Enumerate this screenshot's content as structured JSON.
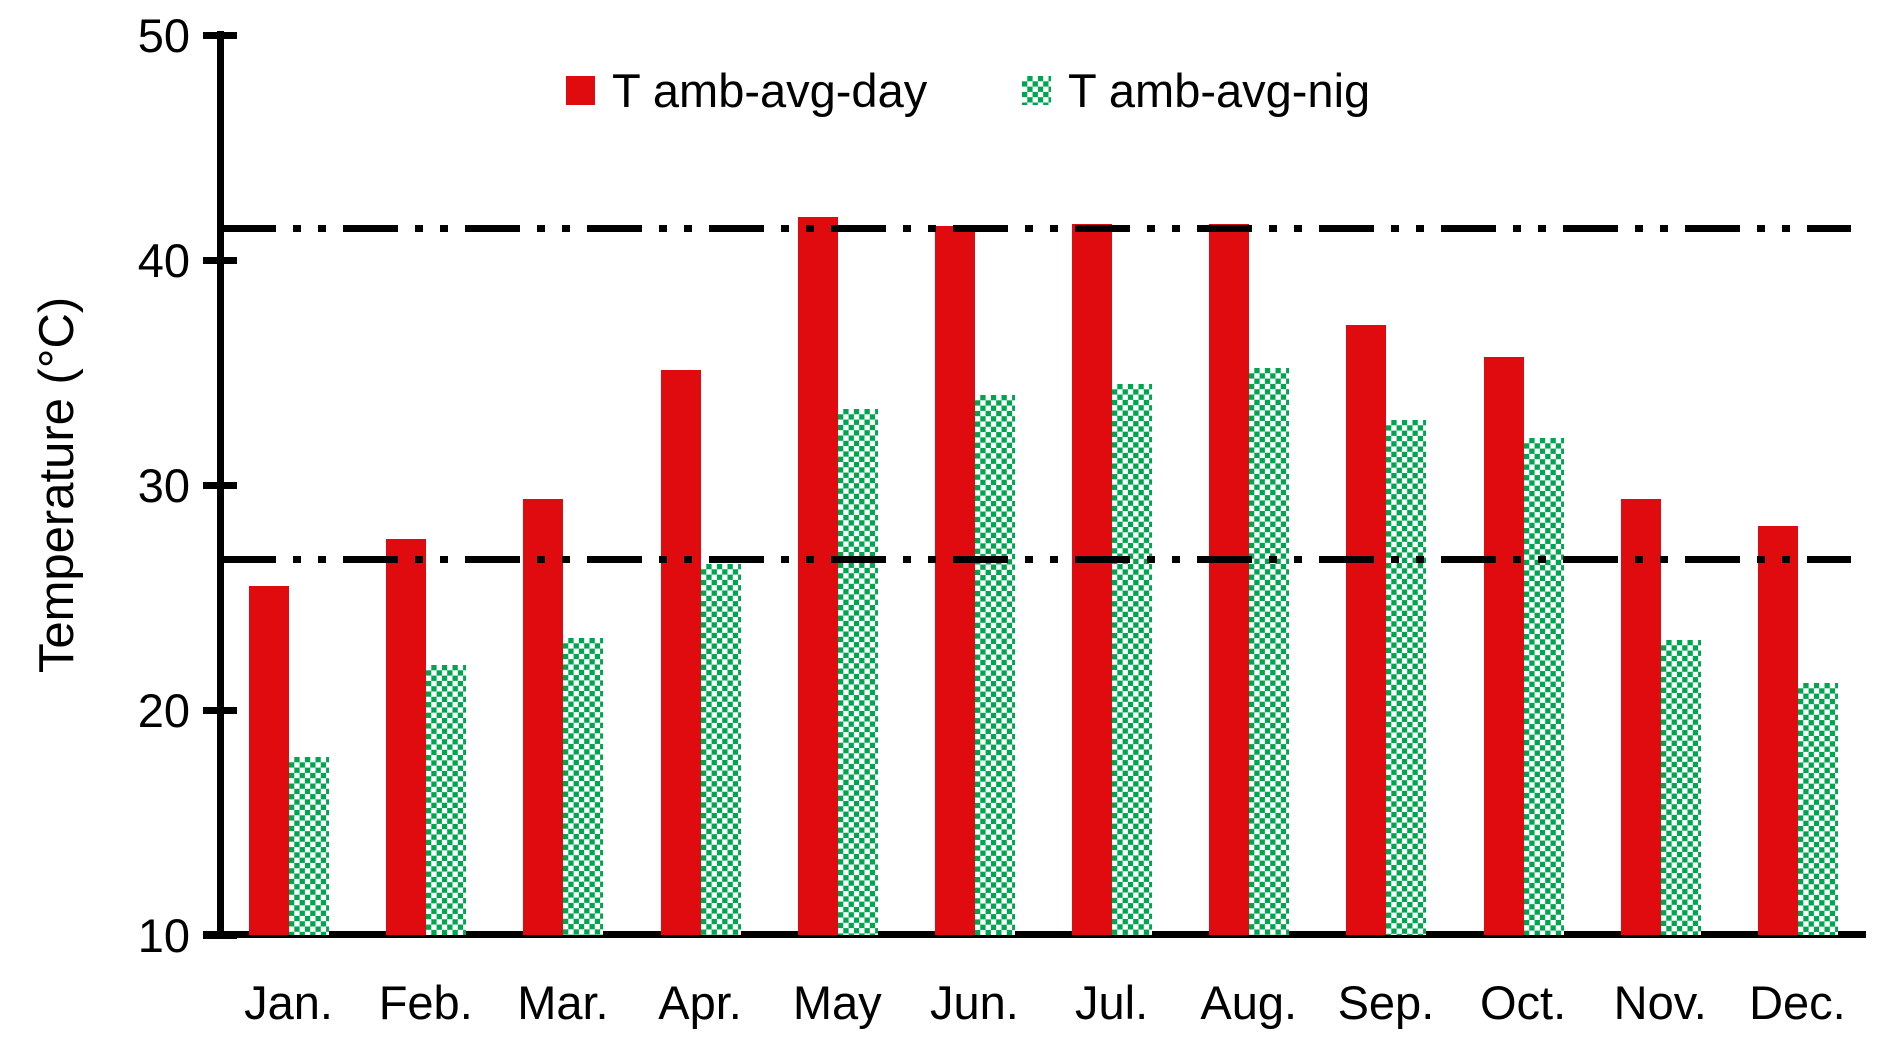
{
  "chart_data": {
    "type": "bar",
    "title": "",
    "xlabel": "",
    "ylabel": "Temperature (°C)",
    "ylim": [
      10,
      50
    ],
    "yticks": [
      10,
      20,
      30,
      40,
      50
    ],
    "grid": false,
    "legend_position": "top-center",
    "categories": [
      "Jan.",
      "Feb.",
      "Mar.",
      "Apr.",
      "May",
      "Jun.",
      "Jul.",
      "Aug.",
      "Sep.",
      "Oct.",
      "Nov.",
      "Dec."
    ],
    "series": [
      {
        "name": "T amb-avg-day",
        "style": "solid",
        "color": "#e00b0e",
        "values": [
          25.5,
          27.6,
          29.4,
          35.1,
          41.9,
          41.5,
          41.6,
          41.6,
          37.1,
          35.7,
          29.4,
          28.2
        ]
      },
      {
        "name": "T amb-avg-nig",
        "style": "checkerboard",
        "color": "#00a64f",
        "values": [
          17.9,
          22.0,
          23.2,
          26.5,
          33.4,
          34.0,
          34.5,
          35.2,
          32.9,
          32.1,
          23.1,
          21.2
        ]
      }
    ],
    "ref_lines": [
      {
        "value": 41.4,
        "style": "dash-dot-dot",
        "color": "#000000"
      },
      {
        "value": 26.7,
        "style": "dash-dot-dot",
        "color": "#000000"
      }
    ]
  }
}
